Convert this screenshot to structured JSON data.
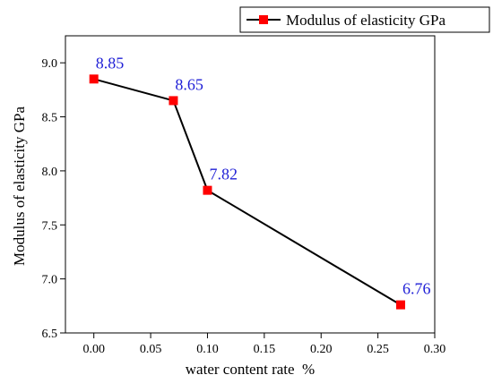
{
  "chart_data": {
    "type": "line",
    "xlabel": "water content rate  %",
    "ylabel": "Modulus of elasticity GPa",
    "xlim": [
      -0.025,
      0.3
    ],
    "ylim": [
      6.5,
      9.25
    ],
    "x_ticks": [
      "0.00",
      "0.05",
      "0.10",
      "0.15",
      "0.20",
      "0.25",
      "0.30"
    ],
    "y_ticks": [
      "6.5",
      "7.0",
      "7.5",
      "8.0",
      "8.5",
      "9.0"
    ],
    "legend_position": "top-right",
    "series": [
      {
        "name": "Modulus of elasticity GPa",
        "x": [
          0.0,
          0.07,
          0.1,
          0.27
        ],
        "y": [
          8.85,
          8.65,
          7.82,
          6.76
        ],
        "labels": [
          "8.85",
          "8.65",
          "7.82",
          "6.76"
        ],
        "line_color": "#000000",
        "marker_color": "#ff0000",
        "label_color": "#1f1fd6"
      }
    ]
  }
}
